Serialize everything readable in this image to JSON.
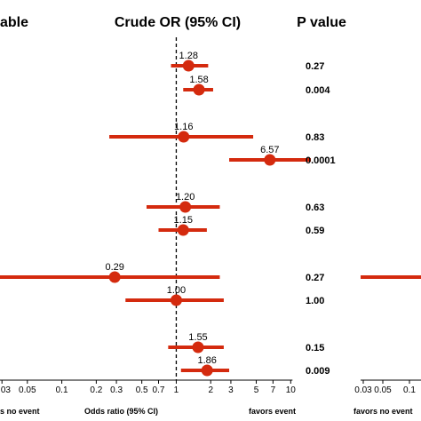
{
  "headers": {
    "variable": "able",
    "or": "Crude OR (95% CI)",
    "p": "P value"
  },
  "colors": {
    "marker": "#d42a0e",
    "axis": "#000000"
  },
  "chart_data": {
    "type": "forest",
    "x_scale": "log",
    "xlabel": "Odds ratio (95% CI)",
    "left_note": "s no event",
    "right_note": "favors event",
    "xlim": [
      0.025,
      13
    ],
    "reference_line": 1,
    "ticks": [
      {
        "value": 0.03,
        "label": "0.03"
      },
      {
        "value": 0.05,
        "label": "0.05"
      },
      {
        "value": 0.1,
        "label": "0.1"
      },
      {
        "value": 0.2,
        "label": "0.2"
      },
      {
        "value": 0.3,
        "label": "0.3"
      },
      {
        "value": 0.5,
        "label": "0.5"
      },
      {
        "value": 0.7,
        "label": "0.7"
      },
      {
        "value": 1,
        "label": "1"
      },
      {
        "value": 2,
        "label": "2"
      },
      {
        "value": 3,
        "label": "3"
      },
      {
        "value": 5,
        "label": "5"
      },
      {
        "value": 7,
        "label": "7"
      },
      {
        "value": 10,
        "label": "10"
      }
    ],
    "rows": [
      {
        "or": 1.28,
        "or_label": "1.28",
        "lo": 0.9,
        "hi": 1.9,
        "p": "0.27"
      },
      {
        "or": 1.58,
        "or_label": "1.58",
        "lo": 1.15,
        "hi": 2.1,
        "p": "0.004"
      },
      {
        "or": 1.16,
        "or_label": "1.16",
        "lo": 0.26,
        "hi": 4.7,
        "p": "0.83"
      },
      {
        "or": 6.57,
        "or_label": "6.57",
        "lo": 2.9,
        "hi": 15,
        "p": "0.0001"
      },
      {
        "or": 1.2,
        "or_label": "1.20",
        "lo": 0.55,
        "hi": 2.4,
        "p": "0.63"
      },
      {
        "or": 1.15,
        "or_label": "1.15",
        "lo": 0.7,
        "hi": 1.85,
        "p": "0.59"
      },
      {
        "or": 0.29,
        "or_label": "0.29",
        "lo": 0.02,
        "hi": 2.4,
        "p": "0.27"
      },
      {
        "or": 1.0,
        "or_label": "1.00",
        "lo": 0.36,
        "hi": 2.6,
        "p": "1.00"
      },
      {
        "or": 1.55,
        "or_label": "1.55",
        "lo": 0.85,
        "hi": 2.6,
        "p": "0.15"
      },
      {
        "or": 1.86,
        "or_label": "1.86",
        "lo": 1.1,
        "hi": 2.9,
        "p": "0.009"
      }
    ]
  },
  "second_panel": {
    "xlabel_left": "favors no event",
    "ticks": [
      "0.03",
      "0.05",
      "0.1"
    ],
    "partial_line_row": 6
  }
}
